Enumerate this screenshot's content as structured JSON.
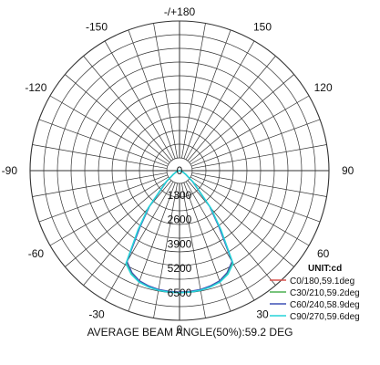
{
  "chart_data": {
    "type": "polar",
    "angle_labels": [
      {
        "label": "-/+180",
        "angle": 180
      },
      {
        "label": "150",
        "angle": 150
      },
      {
        "label": "-150",
        "angle": -150
      },
      {
        "label": "120",
        "angle": 120
      },
      {
        "label": "-120",
        "angle": -120
      },
      {
        "label": "90",
        "angle": 90
      },
      {
        "label": "-90",
        "angle": -90
      },
      {
        "label": "60",
        "angle": 60
      },
      {
        "label": "-60",
        "angle": -60
      },
      {
        "label": "30",
        "angle": 30
      },
      {
        "label": "-30",
        "angle": -30
      },
      {
        "label": "0",
        "angle": 0
      }
    ],
    "radial_ticks": [
      "0",
      "1300",
      "2600",
      "3900",
      "5200",
      "6500"
    ],
    "radial_max": 6500,
    "unit": "UNIT:cd",
    "grid": true,
    "legend_position": "bottom-right",
    "series": [
      {
        "name": "C0/180,59.1deg",
        "color": "#d9534f",
        "points": [
          [
            -90,
            0
          ],
          [
            -80,
            60
          ],
          [
            -70,
            150
          ],
          [
            -60,
            350
          ],
          [
            -50,
            900
          ],
          [
            -40,
            2500
          ],
          [
            -35,
            3700
          ],
          [
            -30,
            5600
          ],
          [
            -25,
            6000
          ],
          [
            -20,
            6250
          ],
          [
            -15,
            6350
          ],
          [
            -10,
            6420
          ],
          [
            -5,
            6450
          ],
          [
            0,
            6460
          ],
          [
            5,
            6450
          ],
          [
            10,
            6420
          ],
          [
            15,
            6350
          ],
          [
            20,
            6250
          ],
          [
            25,
            6000
          ],
          [
            30,
            5600
          ],
          [
            35,
            3700
          ],
          [
            40,
            2500
          ],
          [
            50,
            900
          ],
          [
            60,
            350
          ],
          [
            70,
            150
          ],
          [
            80,
            60
          ],
          [
            90,
            0
          ]
        ]
      },
      {
        "name": "C30/210,59.2deg",
        "color": "#4caf50",
        "points": [
          [
            -90,
            0
          ],
          [
            -80,
            60
          ],
          [
            -70,
            150
          ],
          [
            -60,
            350
          ],
          [
            -50,
            920
          ],
          [
            -40,
            2520
          ],
          [
            -35,
            3750
          ],
          [
            -30,
            5620
          ],
          [
            -25,
            6020
          ],
          [
            -20,
            6260
          ],
          [
            -15,
            6360
          ],
          [
            -10,
            6430
          ],
          [
            -5,
            6460
          ],
          [
            0,
            6470
          ],
          [
            5,
            6460
          ],
          [
            10,
            6430
          ],
          [
            15,
            6360
          ],
          [
            20,
            6260
          ],
          [
            25,
            6020
          ],
          [
            30,
            5620
          ],
          [
            35,
            3750
          ],
          [
            40,
            2520
          ],
          [
            50,
            920
          ],
          [
            60,
            350
          ],
          [
            70,
            150
          ],
          [
            80,
            60
          ],
          [
            90,
            0
          ]
        ]
      },
      {
        "name": "C60/240,58.9deg",
        "color": "#3f51b5",
        "points": [
          [
            -90,
            0
          ],
          [
            -80,
            60
          ],
          [
            -70,
            150
          ],
          [
            -60,
            340
          ],
          [
            -50,
            880
          ],
          [
            -40,
            2480
          ],
          [
            -35,
            3650
          ],
          [
            -30,
            5580
          ],
          [
            -25,
            5980
          ],
          [
            -20,
            6230
          ],
          [
            -15,
            6340
          ],
          [
            -10,
            6410
          ],
          [
            -5,
            6440
          ],
          [
            0,
            6450
          ],
          [
            5,
            6440
          ],
          [
            10,
            6410
          ],
          [
            15,
            6340
          ],
          [
            20,
            6230
          ],
          [
            25,
            5980
          ],
          [
            30,
            5580
          ],
          [
            35,
            3650
          ],
          [
            40,
            2480
          ],
          [
            50,
            880
          ],
          [
            60,
            340
          ],
          [
            70,
            150
          ],
          [
            80,
            60
          ],
          [
            90,
            0
          ]
        ]
      },
      {
        "name": "C90/270,59.6deg",
        "color": "#26d4d9",
        "points": [
          [
            -90,
            0
          ],
          [
            -80,
            70
          ],
          [
            -70,
            170
          ],
          [
            -60,
            380
          ],
          [
            -50,
            950
          ],
          [
            -40,
            2600
          ],
          [
            -35,
            3850
          ],
          [
            -30,
            5700
          ],
          [
            -25,
            6080
          ],
          [
            -20,
            6300
          ],
          [
            -15,
            6400
          ],
          [
            -10,
            6460
          ],
          [
            -5,
            6480
          ],
          [
            0,
            6490
          ],
          [
            5,
            6480
          ],
          [
            10,
            6460
          ],
          [
            15,
            6400
          ],
          [
            20,
            6300
          ],
          [
            25,
            6080
          ],
          [
            30,
            5700
          ],
          [
            35,
            3850
          ],
          [
            40,
            2600
          ],
          [
            50,
            950
          ],
          [
            60,
            380
          ],
          [
            70,
            170
          ],
          [
            80,
            70
          ],
          [
            90,
            0
          ]
        ]
      }
    ]
  },
  "footer": "AVERAGE BEAM ANGLE(50%):59.2 DEG"
}
